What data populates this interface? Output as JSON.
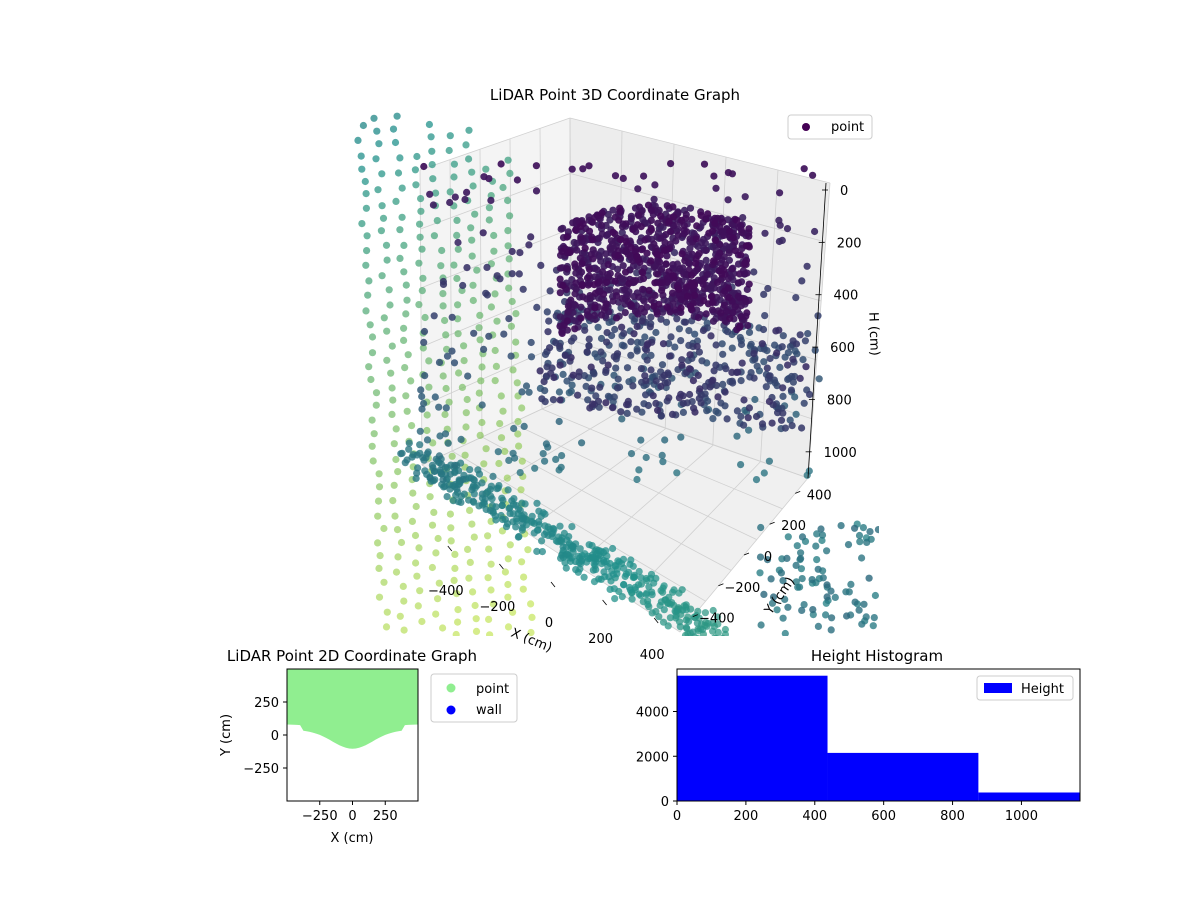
{
  "colors": {
    "hist_bar": "#0000ff",
    "scatter2d_point": "#90ee90",
    "scatter2d_wall": "#0000ff",
    "viridis_dark": "#440154",
    "viridis_mid": "#21918c",
    "viridis_light": "#b5de2b",
    "axis_pane": "#f2f2f2"
  },
  "chart_data": [
    {
      "type": "scatter",
      "projection": "3d",
      "title": "LiDAR Point 3D Coordinate Graph",
      "xlabel": "X (cm)",
      "ylabel": "Y (cm)",
      "zlabel": "H (cm)",
      "x_ticks": [
        "−400",
        "−200",
        "0",
        "200",
        "400"
      ],
      "y_ticks": [
        "−400",
        "−200",
        "0",
        "200",
        "400"
      ],
      "z_ticks": [
        "0",
        "200",
        "400",
        "600",
        "800",
        "1000"
      ],
      "xlim": [
        -500,
        500
      ],
      "ylim": [
        -500,
        500
      ],
      "zlim": [
        0,
        1100
      ],
      "z_inverted": true,
      "colormap": "viridis",
      "legend": {
        "position": "top-right",
        "entries": [
          "point"
        ]
      },
      "grid": true
    },
    {
      "type": "scatter",
      "title": "LiDAR Point 2D Coordinate Graph",
      "xlabel": "X (cm)",
      "ylabel": "Y (cm)",
      "xlim": [
        -500,
        500
      ],
      "ylim": [
        -500,
        500
      ],
      "x_ticks": [
        "−250",
        "0",
        "250"
      ],
      "y_ticks": [
        "250",
        "0",
        "−250"
      ],
      "legend": {
        "position": "outside-right",
        "entries": [
          "point",
          "wall"
        ]
      },
      "grid": false
    },
    {
      "type": "bar",
      "subtype": "histogram",
      "title": "Height Histogram",
      "bins": [
        {
          "from": 0,
          "to": 437,
          "count": 5600
        },
        {
          "from": 437,
          "to": 875,
          "count": 2150
        },
        {
          "from": 875,
          "to": 1170,
          "count": 380
        }
      ],
      "xlim": [
        0,
        1170
      ],
      "ylim": [
        0,
        5900
      ],
      "x_ticks": [
        "0",
        "200",
        "400",
        "600",
        "800",
        "1000"
      ],
      "y_ticks": [
        "0",
        "2000",
        "4000"
      ],
      "legend": {
        "position": "top-right",
        "entries": [
          "Height"
        ]
      },
      "grid": false
    }
  ]
}
